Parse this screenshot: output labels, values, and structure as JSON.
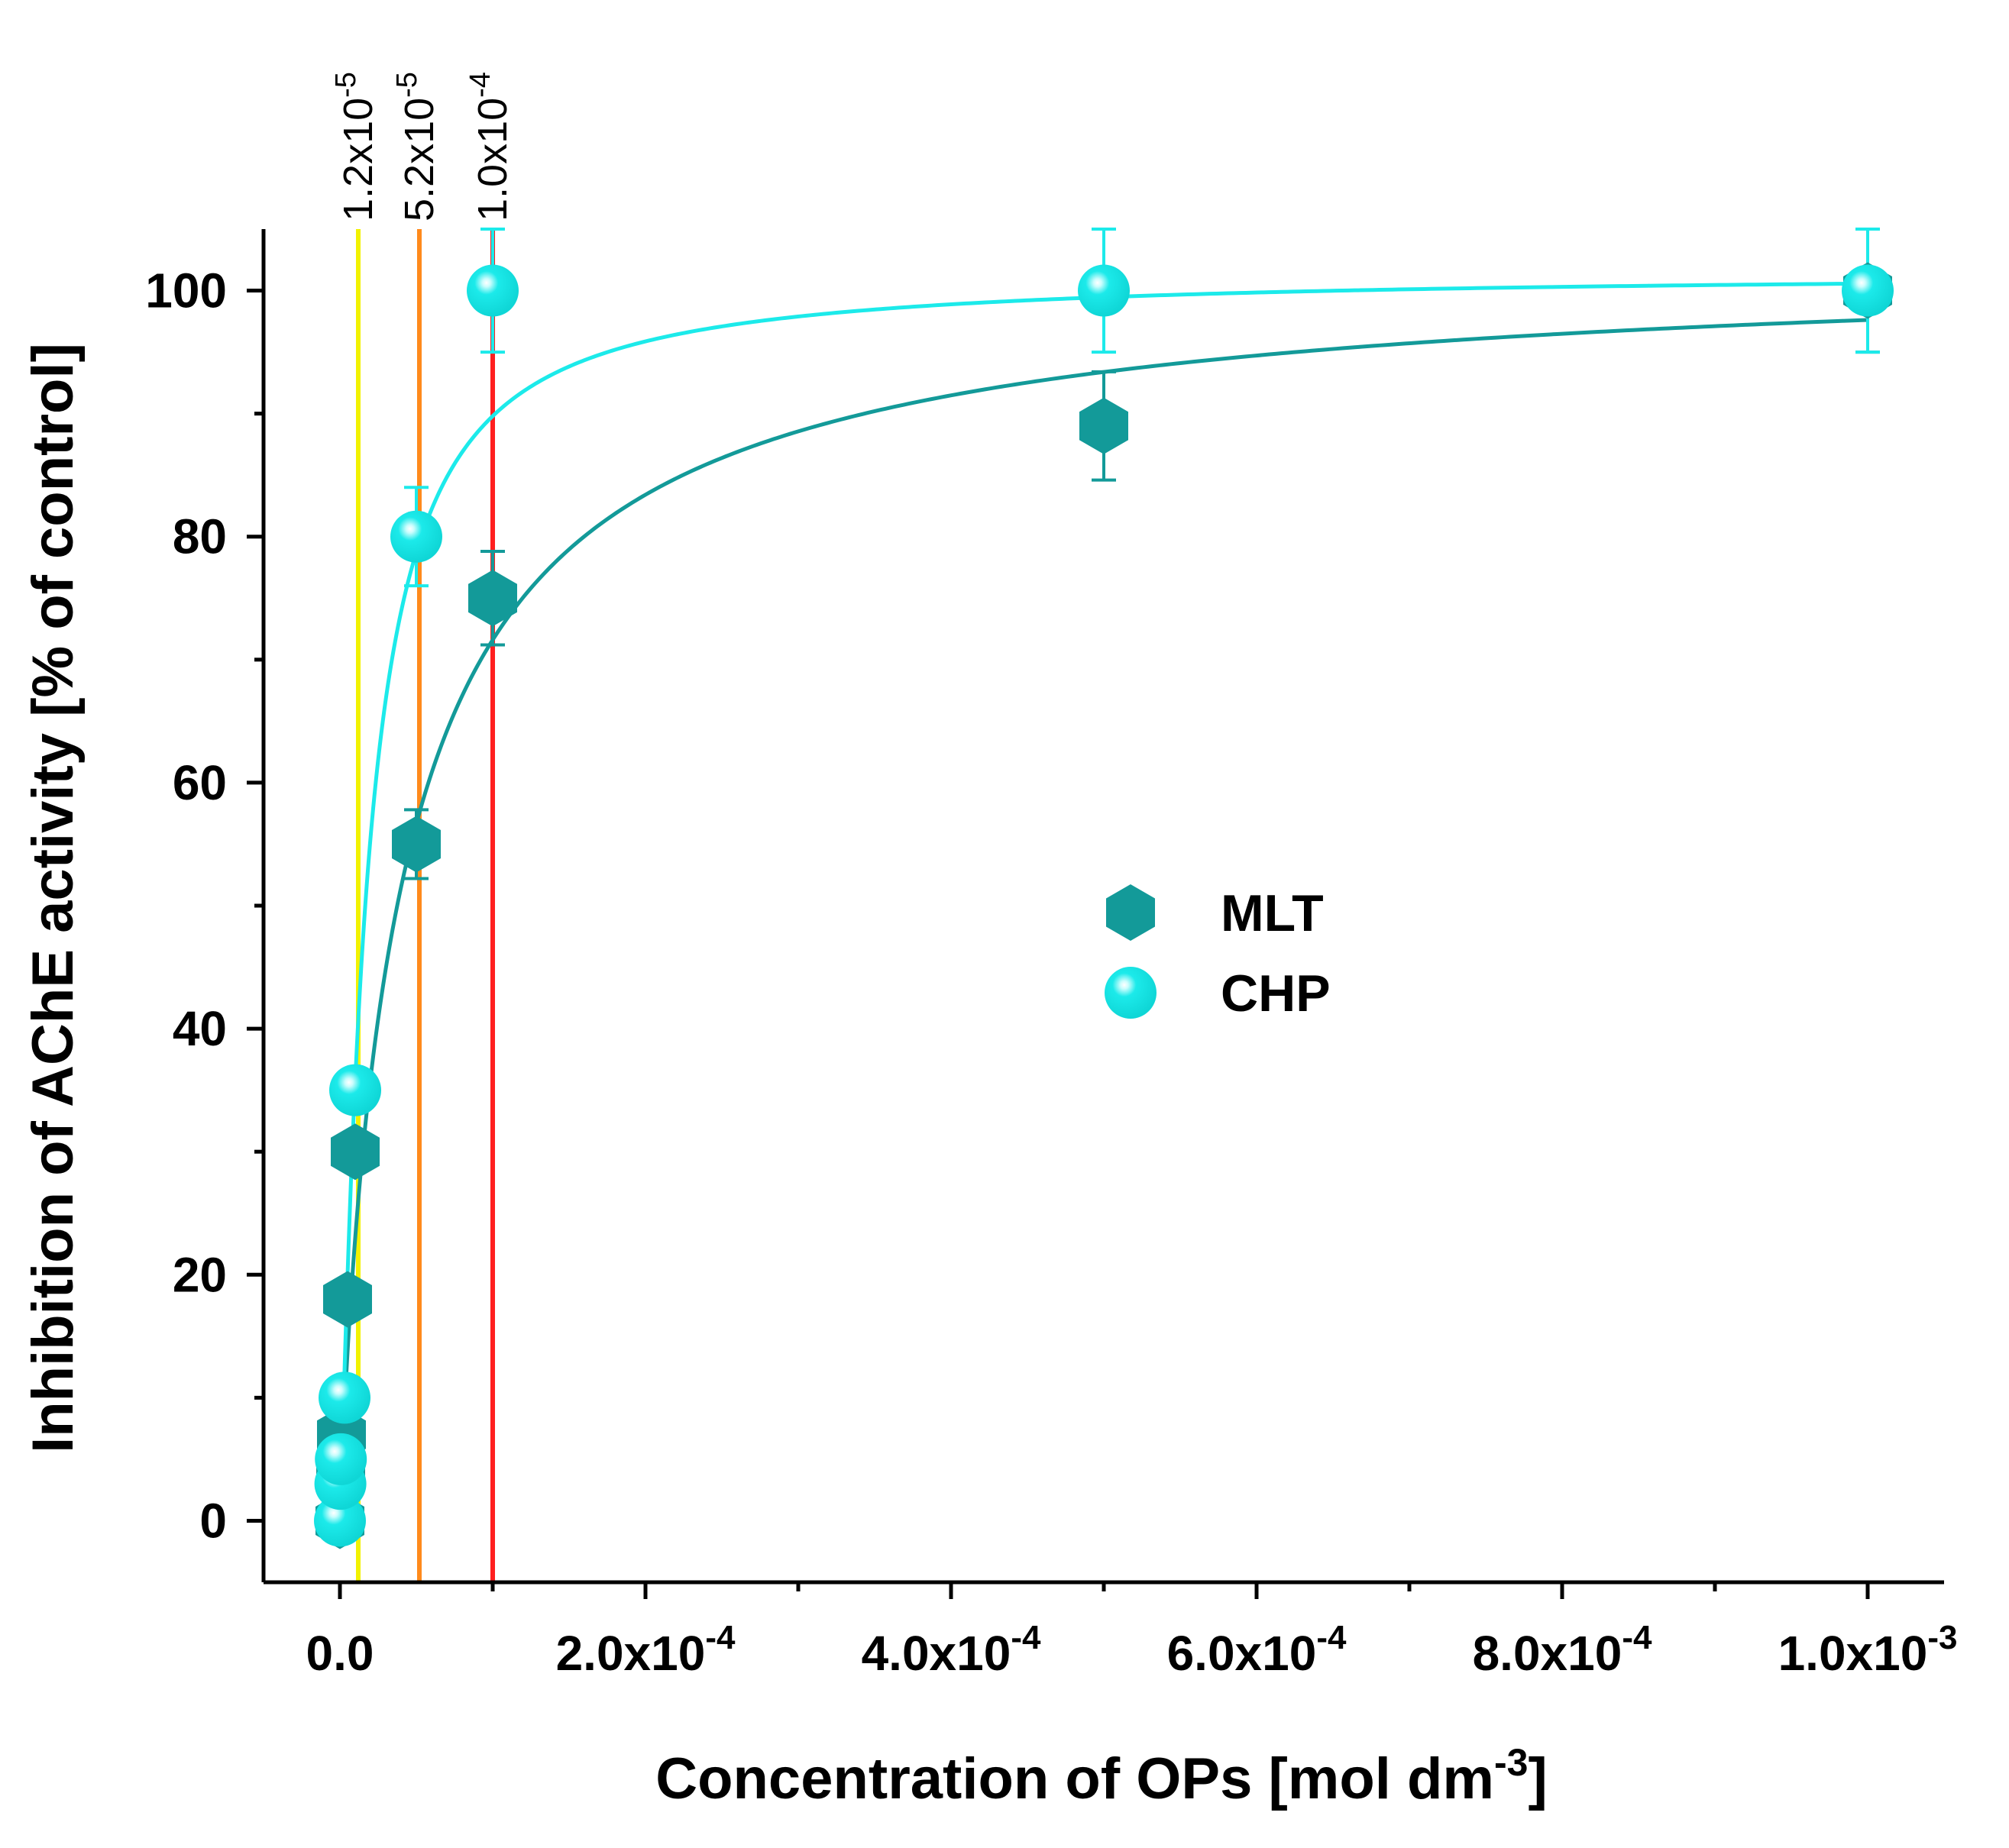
{
  "chart_data": {
    "type": "scatter",
    "xlabel": {
      "text": "Concentration of OPs [mol dm",
      "sup": "-3",
      "end": "]"
    },
    "ylabel": "Inhibition of AChE activity [% of control]",
    "xlim": [
      -5e-05,
      0.00105
    ],
    "ylim": [
      -5,
      105
    ],
    "x_ticks": [
      {
        "value": 0,
        "mant": "0.0",
        "exp": ""
      },
      {
        "value": 0.0002,
        "mant": "2.0x10",
        "exp": "-4"
      },
      {
        "value": 0.0004,
        "mant": "4.0x10",
        "exp": "-4"
      },
      {
        "value": 0.0006,
        "mant": "6.0x10",
        "exp": "-4"
      },
      {
        "value": 0.0008,
        "mant": "8.0x10",
        "exp": "-4"
      },
      {
        "value": 0.001,
        "mant": "1.0x10",
        "exp": "-3"
      }
    ],
    "x_minor_ticks": [
      0.0001,
      0.0003,
      0.0005,
      0.0007,
      0.0009
    ],
    "y_ticks": [
      0,
      20,
      40,
      60,
      80,
      100
    ],
    "y_minor_ticks": [
      10,
      30,
      50,
      70,
      90
    ],
    "series": [
      {
        "name": "MLT",
        "marker": "hexagon",
        "color": "#139a99",
        "points": [
          {
            "x": 0,
            "y": 0,
            "err": 0.8
          },
          {
            "x": 5e-07,
            "y": 4,
            "err": 0.8
          },
          {
            "x": 1e-06,
            "y": 7,
            "err": 0.8
          },
          {
            "x": 5e-06,
            "y": 18,
            "err": 1.0
          },
          {
            "x": 1e-05,
            "y": 30,
            "err": 1.0
          },
          {
            "x": 5e-05,
            "y": 55,
            "err": 2.8
          },
          {
            "x": 0.0001,
            "y": 75,
            "err": 3.8
          },
          {
            "x": 0.0005,
            "y": 89,
            "err": 4.4
          },
          {
            "x": 0.001,
            "y": 100,
            "err": 5
          }
        ],
        "fit": {
          "max": 103,
          "ec50": 4e-05,
          "n": 0.9
        }
      },
      {
        "name": "CHP",
        "marker": "sphere",
        "color": "#1ceaea",
        "points": [
          {
            "x": 0,
            "y": 0,
            "err": 0.8
          },
          {
            "x": 3e-07,
            "y": 3,
            "err": 0.8
          },
          {
            "x": 6e-07,
            "y": 5,
            "err": 0.8
          },
          {
            "x": 3e-06,
            "y": 10,
            "err": 1.0
          },
          {
            "x": 1e-05,
            "y": 35,
            "err": 1.0
          },
          {
            "x": 5e-05,
            "y": 80,
            "err": 4
          },
          {
            "x": 0.0001,
            "y": 100,
            "err": 5
          },
          {
            "x": 0.0005,
            "y": 100,
            "err": 5
          },
          {
            "x": 0.001,
            "y": 100,
            "err": 5
          }
        ],
        "fit": {
          "max": 101.5,
          "ec50": 1.7e-05,
          "n": 1.15
        }
      }
    ],
    "reference_lines": [
      {
        "x": 1.2e-05,
        "mant": "1.2x10",
        "exp": "-5",
        "color": "#f2f200"
      },
      {
        "x": 5.2e-05,
        "mant": "5.2x10",
        "exp": "-5",
        "color": "#ff8a1c"
      },
      {
        "x": 0.0001,
        "mant": "1.0x10",
        "exp": "-4",
        "color": "#ff1f1f"
      }
    ],
    "legend": {
      "position": "center-right",
      "entries": [
        "MLT",
        "CHP"
      ]
    }
  }
}
